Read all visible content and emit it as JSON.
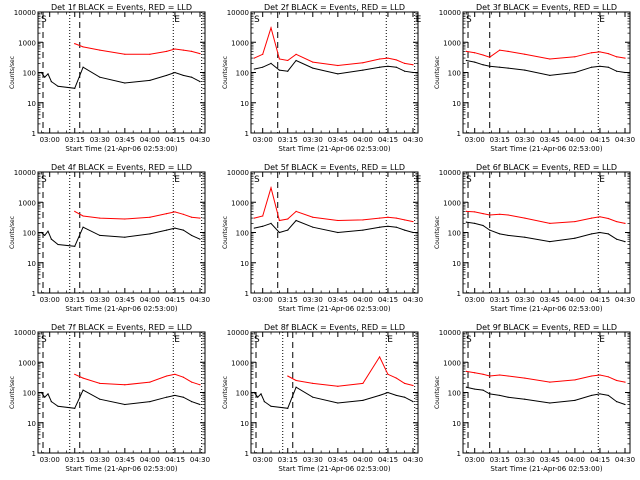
{
  "figure": {
    "ytick_labels": [
      "1",
      "10",
      "100",
      "1000",
      "10000"
    ],
    "xtick_labels": [
      "03:00",
      "03:15",
      "03:30",
      "03:45",
      "04:00",
      "04:15",
      "04:30"
    ],
    "xlabel": "Start Time (21-Apr-06 02:53:00)",
    "ylabel": "Counts/sec",
    "marker_s": "S",
    "marker_e": "E"
  },
  "chart_data": [
    {
      "type": "line",
      "title": "Det 1f BLACK = Events, RED = LLD",
      "ylim": [
        1,
        10000
      ],
      "xlim": [
        "02:53",
        "04:33"
      ],
      "yscale": "log",
      "series": [
        {
          "color": "#000000",
          "x": [
            "02:55",
            "02:57",
            "02:59",
            "03:01",
            "03:05",
            "03:15",
            "03:20",
            "03:30",
            "03:45",
            "04:00",
            "04:10",
            "04:15",
            "04:20",
            "04:25",
            "04:30"
          ],
          "y": [
            100,
            70,
            90,
            50,
            35,
            30,
            150,
            70,
            45,
            55,
            80,
            100,
            80,
            70,
            50
          ]
        },
        {
          "color": "#ff0000",
          "x": [
            "03:15",
            "03:20",
            "03:30",
            "03:45",
            "04:00",
            "04:10",
            "04:15",
            "04:20",
            "04:25",
            "04:30"
          ],
          "y": [
            900,
            700,
            550,
            400,
            400,
            500,
            600,
            550,
            500,
            420
          ]
        }
      ],
      "vlines": [
        {
          "x": "02:56",
          "style": "dash"
        },
        {
          "x": "03:12",
          "style": "dot"
        },
        {
          "x": "03:18",
          "style": "dash"
        },
        {
          "x": "04:14",
          "style": "dot"
        },
        {
          "x": "04:31",
          "style": "dot"
        }
      ]
    },
    {
      "type": "line",
      "title": "Det 2f BLACK = Events, RED = LLD",
      "ylim": [
        1,
        10000
      ],
      "xlim": [
        "02:53",
        "04:33"
      ],
      "yscale": "log",
      "series": [
        {
          "color": "#000000",
          "x": [
            "02:55",
            "03:00",
            "03:05",
            "03:10",
            "03:15",
            "03:20",
            "03:30",
            "03:45",
            "04:00",
            "04:10",
            "04:15",
            "04:20",
            "04:25",
            "04:30"
          ],
          "y": [
            130,
            150,
            200,
            120,
            110,
            250,
            140,
            90,
            120,
            150,
            160,
            150,
            110,
            100
          ]
        },
        {
          "color": "#ff0000",
          "x": [
            "02:55",
            "03:00",
            "03:05",
            "03:10",
            "03:15",
            "03:20",
            "03:30",
            "03:45",
            "04:00",
            "04:10",
            "04:15",
            "04:20",
            "04:25",
            "04:30"
          ],
          "y": [
            300,
            400,
            3000,
            280,
            250,
            400,
            220,
            170,
            210,
            280,
            300,
            260,
            200,
            180
          ]
        }
      ],
      "vlines": [
        {
          "x": "03:09",
          "style": "dash"
        },
        {
          "x": "04:14",
          "style": "dot"
        },
        {
          "x": "04:31",
          "style": "dot"
        }
      ]
    },
    {
      "type": "line",
      "title": "Det 3f BLACK = Events, RED = LLD",
      "ylim": [
        1,
        10000
      ],
      "xlim": [
        "02:53",
        "04:33"
      ],
      "yscale": "log",
      "series": [
        {
          "color": "#000000",
          "x": [
            "02:55",
            "03:00",
            "03:05",
            "03:09",
            "03:15",
            "03:20",
            "03:30",
            "03:45",
            "04:00",
            "04:10",
            "04:15",
            "04:20",
            "04:25",
            "04:30"
          ],
          "y": [
            250,
            220,
            180,
            160,
            150,
            140,
            120,
            80,
            100,
            150,
            160,
            150,
            110,
            100
          ]
        },
        {
          "color": "#ff0000",
          "x": [
            "02:55",
            "03:00",
            "03:05",
            "03:09",
            "03:15",
            "03:20",
            "03:30",
            "03:45",
            "04:00",
            "04:10",
            "04:15",
            "04:20",
            "04:25",
            "04:30"
          ],
          "y": [
            500,
            450,
            380,
            320,
            550,
            500,
            400,
            280,
            330,
            450,
            480,
            420,
            330,
            300
          ]
        }
      ],
      "vlines": [
        {
          "x": "02:56",
          "style": "dash"
        },
        {
          "x": "03:09",
          "style": "dash"
        },
        {
          "x": "04:14",
          "style": "dot"
        }
      ]
    },
    {
      "type": "line",
      "title": "Det 4f BLACK = Events, RED = LLD",
      "ylim": [
        1,
        10000
      ],
      "xlim": [
        "02:53",
        "04:33"
      ],
      "yscale": "log",
      "series": [
        {
          "color": "#000000",
          "x": [
            "02:55",
            "02:57",
            "02:59",
            "03:01",
            "03:05",
            "03:15",
            "03:20",
            "03:30",
            "03:45",
            "04:00",
            "04:10",
            "04:15",
            "04:20",
            "04:25",
            "04:30"
          ],
          "y": [
            100,
            80,
            110,
            60,
            40,
            35,
            150,
            80,
            70,
            90,
            120,
            140,
            120,
            80,
            60
          ]
        },
        {
          "color": "#ff0000",
          "x": [
            "03:15",
            "03:20",
            "03:30",
            "03:45",
            "04:00",
            "04:10",
            "04:15",
            "04:20",
            "04:25",
            "04:30"
          ],
          "y": [
            500,
            350,
            300,
            280,
            320,
            420,
            480,
            400,
            320,
            300
          ]
        }
      ],
      "vlines": [
        {
          "x": "02:56",
          "style": "dash"
        },
        {
          "x": "03:12",
          "style": "dot"
        },
        {
          "x": "03:18",
          "style": "dash"
        },
        {
          "x": "04:14",
          "style": "dot"
        },
        {
          "x": "04:31",
          "style": "dot"
        }
      ]
    },
    {
      "type": "line",
      "title": "Det 5f BLACK = Events, RED = LLD",
      "ylim": [
        1,
        10000
      ],
      "xlim": [
        "02:53",
        "04:33"
      ],
      "yscale": "log",
      "series": [
        {
          "color": "#000000",
          "x": [
            "02:55",
            "03:00",
            "03:05",
            "03:10",
            "03:15",
            "03:20",
            "03:30",
            "03:45",
            "04:00",
            "04:10",
            "04:15",
            "04:20",
            "04:25",
            "04:30"
          ],
          "y": [
            140,
            160,
            200,
            100,
            120,
            250,
            150,
            100,
            120,
            150,
            160,
            150,
            120,
            100
          ]
        },
        {
          "color": "#ff0000",
          "x": [
            "02:55",
            "03:00",
            "03:05",
            "03:10",
            "03:15",
            "03:20",
            "03:30",
            "03:45",
            "04:00",
            "04:10",
            "04:15",
            "04:20",
            "04:25",
            "04:30"
          ],
          "y": [
            300,
            350,
            3000,
            250,
            280,
            500,
            320,
            250,
            260,
            300,
            320,
            300,
            260,
            230
          ]
        }
      ],
      "vlines": [
        {
          "x": "03:09",
          "style": "dash"
        },
        {
          "x": "04:14",
          "style": "dot"
        },
        {
          "x": "04:31",
          "style": "dot"
        }
      ]
    },
    {
      "type": "line",
      "title": "Det 6f BLACK = Events, RED = LLD",
      "ylim": [
        1,
        10000
      ],
      "xlim": [
        "02:53",
        "04:33"
      ],
      "yscale": "log",
      "series": [
        {
          "color": "#000000",
          "x": [
            "02:55",
            "03:00",
            "03:05",
            "03:09",
            "03:15",
            "03:20",
            "03:30",
            "03:45",
            "04:00",
            "04:10",
            "04:15",
            "04:20",
            "04:25",
            "04:30"
          ],
          "y": [
            220,
            200,
            170,
            120,
            90,
            80,
            70,
            50,
            65,
            90,
            100,
            90,
            60,
            50
          ]
        },
        {
          "color": "#ff0000",
          "x": [
            "02:55",
            "03:00",
            "03:05",
            "03:09",
            "03:15",
            "03:20",
            "03:30",
            "03:45",
            "04:00",
            "04:10",
            "04:15",
            "04:20",
            "04:25",
            "04:30"
          ],
          "y": [
            500,
            480,
            420,
            380,
            400,
            380,
            300,
            200,
            230,
            300,
            330,
            290,
            230,
            200
          ]
        }
      ],
      "vlines": [
        {
          "x": "02:56",
          "style": "dash"
        },
        {
          "x": "03:09",
          "style": "dash"
        },
        {
          "x": "04:14",
          "style": "dot"
        }
      ]
    },
    {
      "type": "line",
      "title": "Det 7f BLACK = Events, RED = LLD",
      "ylim": [
        1,
        10000
      ],
      "xlim": [
        "02:53",
        "04:33"
      ],
      "yscale": "log",
      "series": [
        {
          "color": "#000000",
          "x": [
            "02:55",
            "02:57",
            "02:59",
            "03:01",
            "03:05",
            "03:15",
            "03:20",
            "03:30",
            "03:45",
            "04:00",
            "04:10",
            "04:15",
            "04:20",
            "04:25",
            "04:30"
          ],
          "y": [
            100,
            70,
            90,
            50,
            35,
            30,
            120,
            60,
            40,
            50,
            70,
            80,
            70,
            50,
            40
          ]
        },
        {
          "color": "#ff0000",
          "x": [
            "03:15",
            "03:20",
            "03:30",
            "03:45",
            "04:00",
            "04:10",
            "04:15",
            "04:20",
            "04:25",
            "04:30"
          ],
          "y": [
            400,
            300,
            200,
            180,
            220,
            350,
            400,
            320,
            220,
            180
          ]
        }
      ],
      "vlines": [
        {
          "x": "02:56",
          "style": "dash"
        },
        {
          "x": "03:12",
          "style": "dot"
        },
        {
          "x": "03:18",
          "style": "dash"
        },
        {
          "x": "04:14",
          "style": "dot"
        },
        {
          "x": "04:31",
          "style": "dot"
        }
      ]
    },
    {
      "type": "line",
      "title": "Det 8f BLACK = Events, RED = LLD",
      "ylim": [
        1,
        10000
      ],
      "xlim": [
        "02:53",
        "04:33"
      ],
      "yscale": "log",
      "series": [
        {
          "color": "#000000",
          "x": [
            "02:55",
            "02:57",
            "02:59",
            "03:01",
            "03:05",
            "03:15",
            "03:20",
            "03:30",
            "03:45",
            "04:00",
            "04:10",
            "04:15",
            "04:20",
            "04:25",
            "04:30"
          ],
          "y": [
            100,
            70,
            90,
            50,
            35,
            30,
            150,
            70,
            45,
            55,
            80,
            100,
            80,
            70,
            50
          ]
        },
        {
          "color": "#ff0000",
          "x": [
            "03:15",
            "03:20",
            "03:30",
            "03:45",
            "04:00",
            "04:10",
            "04:15",
            "04:20",
            "04:25",
            "04:30"
          ],
          "y": [
            350,
            250,
            200,
            160,
            200,
            1500,
            400,
            300,
            200,
            170
          ]
        }
      ],
      "vlines": [
        {
          "x": "02:56",
          "style": "dash"
        },
        {
          "x": "03:12",
          "style": "dot"
        },
        {
          "x": "03:18",
          "style": "dash"
        },
        {
          "x": "04:14",
          "style": "dot"
        },
        {
          "x": "04:31",
          "style": "dot"
        }
      ]
    },
    {
      "type": "line",
      "title": "Det 9f BLACK = Events, RED = LLD",
      "ylim": [
        1,
        10000
      ],
      "xlim": [
        "02:53",
        "04:33"
      ],
      "yscale": "log",
      "series": [
        {
          "color": "#000000",
          "x": [
            "02:55",
            "03:00",
            "03:05",
            "03:09",
            "03:15",
            "03:20",
            "03:30",
            "03:45",
            "04:00",
            "04:10",
            "04:15",
            "04:20",
            "04:25",
            "04:30"
          ],
          "y": [
            150,
            130,
            120,
            90,
            80,
            70,
            60,
            45,
            55,
            80,
            90,
            80,
            50,
            40
          ]
        },
        {
          "color": "#ff0000",
          "x": [
            "02:55",
            "03:00",
            "03:05",
            "03:09",
            "03:15",
            "03:20",
            "03:30",
            "03:45",
            "04:00",
            "04:10",
            "04:15",
            "04:20",
            "04:25",
            "04:30"
          ],
          "y": [
            500,
            450,
            400,
            350,
            380,
            350,
            300,
            220,
            260,
            350,
            380,
            330,
            250,
            220
          ]
        }
      ],
      "vlines": [
        {
          "x": "02:56",
          "style": "dash"
        },
        {
          "x": "03:09",
          "style": "dash"
        },
        {
          "x": "04:14",
          "style": "dot"
        }
      ]
    }
  ]
}
